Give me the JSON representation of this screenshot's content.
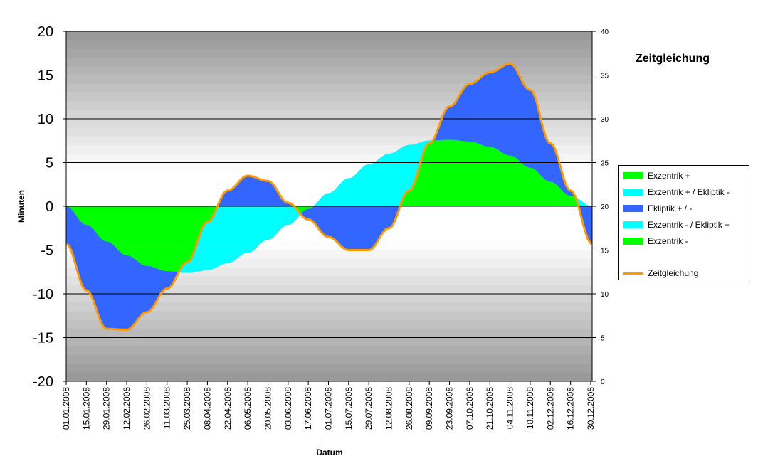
{
  "chart_data": {
    "type": "area",
    "title": "Zeitgleichung",
    "xlabel": "Datum",
    "ylabel": "Minuten",
    "ylim": [
      -20,
      20
    ],
    "y2lim": [
      0,
      40
    ],
    "yticks": [
      "20",
      "15",
      "10",
      "5",
      "0",
      "-5",
      "-10",
      "-15",
      "-20"
    ],
    "y2ticks": [
      "40",
      "35",
      "30",
      "25",
      "20",
      "15",
      "10",
      "5",
      "0"
    ],
    "xticks": [
      "01.01.2008",
      "15.01.2008",
      "29.01.2008",
      "12.02.2008",
      "26.02.2008",
      "11.03.2008",
      "25.03.2008",
      "08.04.2008",
      "22.04.2008",
      "06.05.2008",
      "20.05.2008",
      "03.06.2008",
      "17.06.2008",
      "01.07.2008",
      "15.07.2008",
      "29.07.2008",
      "12.08.2008",
      "26.08.2008",
      "09.09.2008",
      "23.09.2008",
      "07.10.2008",
      "21.10.2008",
      "04.11.2008",
      "18.11.2008",
      "02.12.2008",
      "16.12.2008",
      "30.12.2008"
    ],
    "days_in_year": 366,
    "series": [
      {
        "name": "Exzentrik",
        "x_days": [
          0,
          14,
          28,
          42,
          56,
          70,
          84,
          98,
          112,
          126,
          140,
          154,
          168,
          182,
          196,
          210,
          224,
          238,
          252,
          266,
          280,
          294,
          308,
          322,
          336,
          350,
          365
        ],
        "values": [
          0.0,
          -2.1,
          -4.0,
          -5.6,
          -6.8,
          -7.4,
          -7.6,
          -7.3,
          -6.5,
          -5.3,
          -3.8,
          -2.1,
          -0.3,
          1.5,
          3.2,
          4.8,
          6.0,
          7.0,
          7.5,
          7.6,
          7.4,
          6.8,
          5.8,
          4.4,
          2.8,
          1.2,
          0.0
        ]
      },
      {
        "name": "Ekliptik",
        "x_days": [
          0,
          14,
          28,
          42,
          56,
          70,
          84,
          98,
          112,
          126,
          140,
          154,
          168,
          182,
          196,
          210,
          224,
          238,
          252,
          266,
          280,
          294,
          308,
          322,
          336,
          350,
          365
        ],
        "values": [
          -4.3,
          -7.5,
          -10.0,
          -8.5,
          -5.3,
          -2.0,
          1.2,
          5.5,
          8.3,
          8.8,
          6.7,
          2.5,
          -1.2,
          -5.0,
          -8.2,
          -9.8,
          -8.5,
          -5.2,
          -0.3,
          3.8,
          6.6,
          8.5,
          10.5,
          8.9,
          4.4,
          0.6,
          -4.3
        ]
      },
      {
        "name": "Zeitgleichung",
        "x_days": [
          0,
          14,
          28,
          42,
          56,
          70,
          84,
          98,
          112,
          126,
          140,
          154,
          168,
          182,
          196,
          210,
          224,
          238,
          252,
          266,
          280,
          294,
          308,
          322,
          336,
          350,
          365
        ],
        "values": [
          -4.3,
          -9.6,
          -14.0,
          -14.1,
          -12.1,
          -9.4,
          -6.4,
          -1.8,
          1.8,
          3.5,
          2.9,
          0.4,
          -1.5,
          -3.5,
          -5.0,
          -5.0,
          -2.5,
          1.8,
          7.2,
          11.4,
          14.0,
          15.3,
          16.3,
          13.3,
          7.2,
          1.8,
          -4.3
        ]
      }
    ],
    "legend": {
      "position": "right",
      "items": [
        {
          "label": "Exzentrik +",
          "color": "#00ff00"
        },
        {
          "label": "Exzentrik + / Ekliptik -",
          "color": "#00ffff"
        },
        {
          "label": "Ekliptik + / -",
          "color": "#3366ff"
        },
        {
          "label": "Exzentrik - / Ekliptik +",
          "color": "#00ffff"
        },
        {
          "label": "Exzentrik -",
          "color": "#00ff00"
        },
        {
          "label": "Zeitgleichung",
          "color": "#ff9900",
          "line": true
        }
      ]
    },
    "colors": {
      "exzentrik": "#00ff00",
      "mixed": "#00ffff",
      "ekliptik": "#3366ff",
      "zeitgleichung": "#ff9900",
      "zeitgleichung_outline": "#e8a030"
    },
    "grid": true,
    "background": "gradient-gray"
  }
}
